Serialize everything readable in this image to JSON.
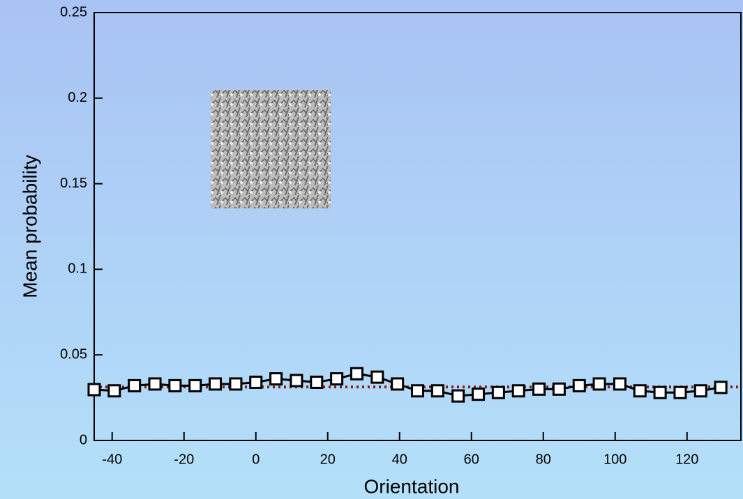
{
  "chart_data": {
    "type": "line",
    "xlabel": "Orientation",
    "ylabel": "Mean probability",
    "x": [
      -45,
      -39.4,
      -33.8,
      -28.1,
      -22.5,
      -16.9,
      -11.3,
      -5.6,
      0,
      5.6,
      11.3,
      16.9,
      22.5,
      28.1,
      33.8,
      39.4,
      45,
      50.6,
      56.3,
      61.9,
      67.5,
      73.1,
      78.8,
      84.4,
      90,
      95.6,
      101.3,
      106.9,
      112.5,
      118.1,
      123.8,
      129.4
    ],
    "series": [
      {
        "color": "#000000",
        "values": [
          0.0297,
          0.029,
          0.032,
          0.033,
          0.032,
          0.032,
          0.033,
          0.033,
          0.034,
          0.036,
          0.035,
          0.034,
          0.036,
          0.039,
          0.037,
          0.033,
          0.029,
          0.029,
          0.026,
          0.027,
          0.028,
          0.029,
          0.03,
          0.03,
          0.032,
          0.033,
          0.033,
          0.029,
          0.028,
          0.028,
          0.029,
          0.031
        ]
      }
    ],
    "reference_line": {
      "value": 0.03125,
      "color": "#8b1a1a"
    },
    "xlim": [
      -45,
      135
    ],
    "xticks": [
      -40,
      -20,
      0,
      20,
      40,
      60,
      80,
      100,
      120
    ],
    "ylim": [
      0,
      0.25
    ],
    "yticks": [
      0,
      0.05,
      0.1,
      0.15,
      0.2,
      0.25
    ]
  }
}
